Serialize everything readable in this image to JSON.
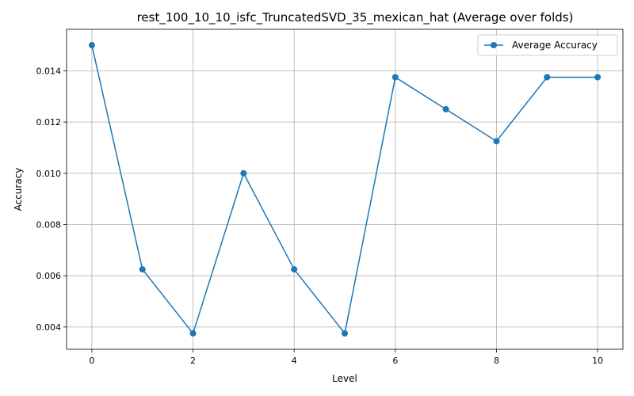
{
  "chart_data": {
    "type": "line",
    "title": "rest_100_10_10_isfc_TruncatedSVD_35_mexican_hat (Average over folds)",
    "xlabel": "Level",
    "ylabel": "Accuracy",
    "xlim": [
      -0.5,
      10.5
    ],
    "ylim": [
      0.00313,
      0.01562
    ],
    "xticks": [
      0,
      2,
      4,
      6,
      8,
      10
    ],
    "yticks": [
      0.004,
      0.006,
      0.008,
      0.01,
      0.012,
      0.014
    ],
    "ytick_labels": [
      "0.004",
      "0.006",
      "0.008",
      "0.010",
      "0.012",
      "0.014"
    ],
    "grid": true,
    "legend_position": "top-right",
    "series": [
      {
        "name": "Average Accuracy",
        "color": "#1f77b4",
        "marker": "circle",
        "x": [
          0,
          1,
          2,
          3,
          4,
          5,
          6,
          7,
          8,
          9,
          10
        ],
        "y": [
          0.015,
          0.00625,
          0.00375,
          0.01,
          0.00625,
          0.00375,
          0.01375,
          0.0125,
          0.01125,
          0.01375,
          0.01375
        ]
      }
    ]
  }
}
